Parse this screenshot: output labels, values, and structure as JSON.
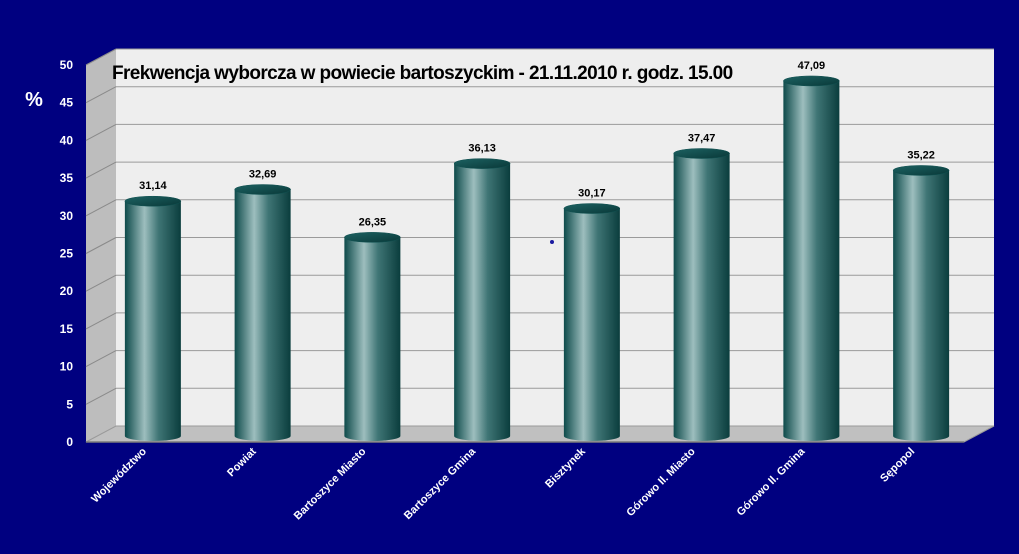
{
  "chart_data": {
    "type": "bar",
    "title": "Frekwencja wyborcza w powiecie bartoszyckim - 21.11.2010 r. godz. 15.00",
    "ylabel": "%",
    "xlabel": "",
    "ylim": [
      0,
      50
    ],
    "yticks": [
      "0",
      "5",
      "10",
      "15",
      "20",
      "25",
      "30",
      "35",
      "40",
      "45",
      "50"
    ],
    "categories": [
      "Województwo",
      "Powiat",
      "Bartoszyce Miasto",
      "Bartoszyce Gmina",
      "Bisztynek",
      "Górowo Il. Miasto",
      "Górowo Il. Gmina",
      "Sępopol"
    ],
    "values": [
      31.14,
      32.69,
      26.35,
      36.13,
      30.17,
      37.47,
      47.09,
      35.22
    ],
    "data_labels": [
      "31,14",
      "32,69",
      "26,35",
      "36,13",
      "30,17",
      "37,47",
      "47,09",
      "35,22"
    ],
    "grid": true,
    "legend": "none",
    "colors": {
      "background": "#000080",
      "plot_wall": "#eeeeee",
      "side_wall": "#bdbdbd",
      "floor": "#c0c0c0",
      "bar_dark": "#0d4a4a",
      "bar_light": "#a9c5c5"
    }
  }
}
